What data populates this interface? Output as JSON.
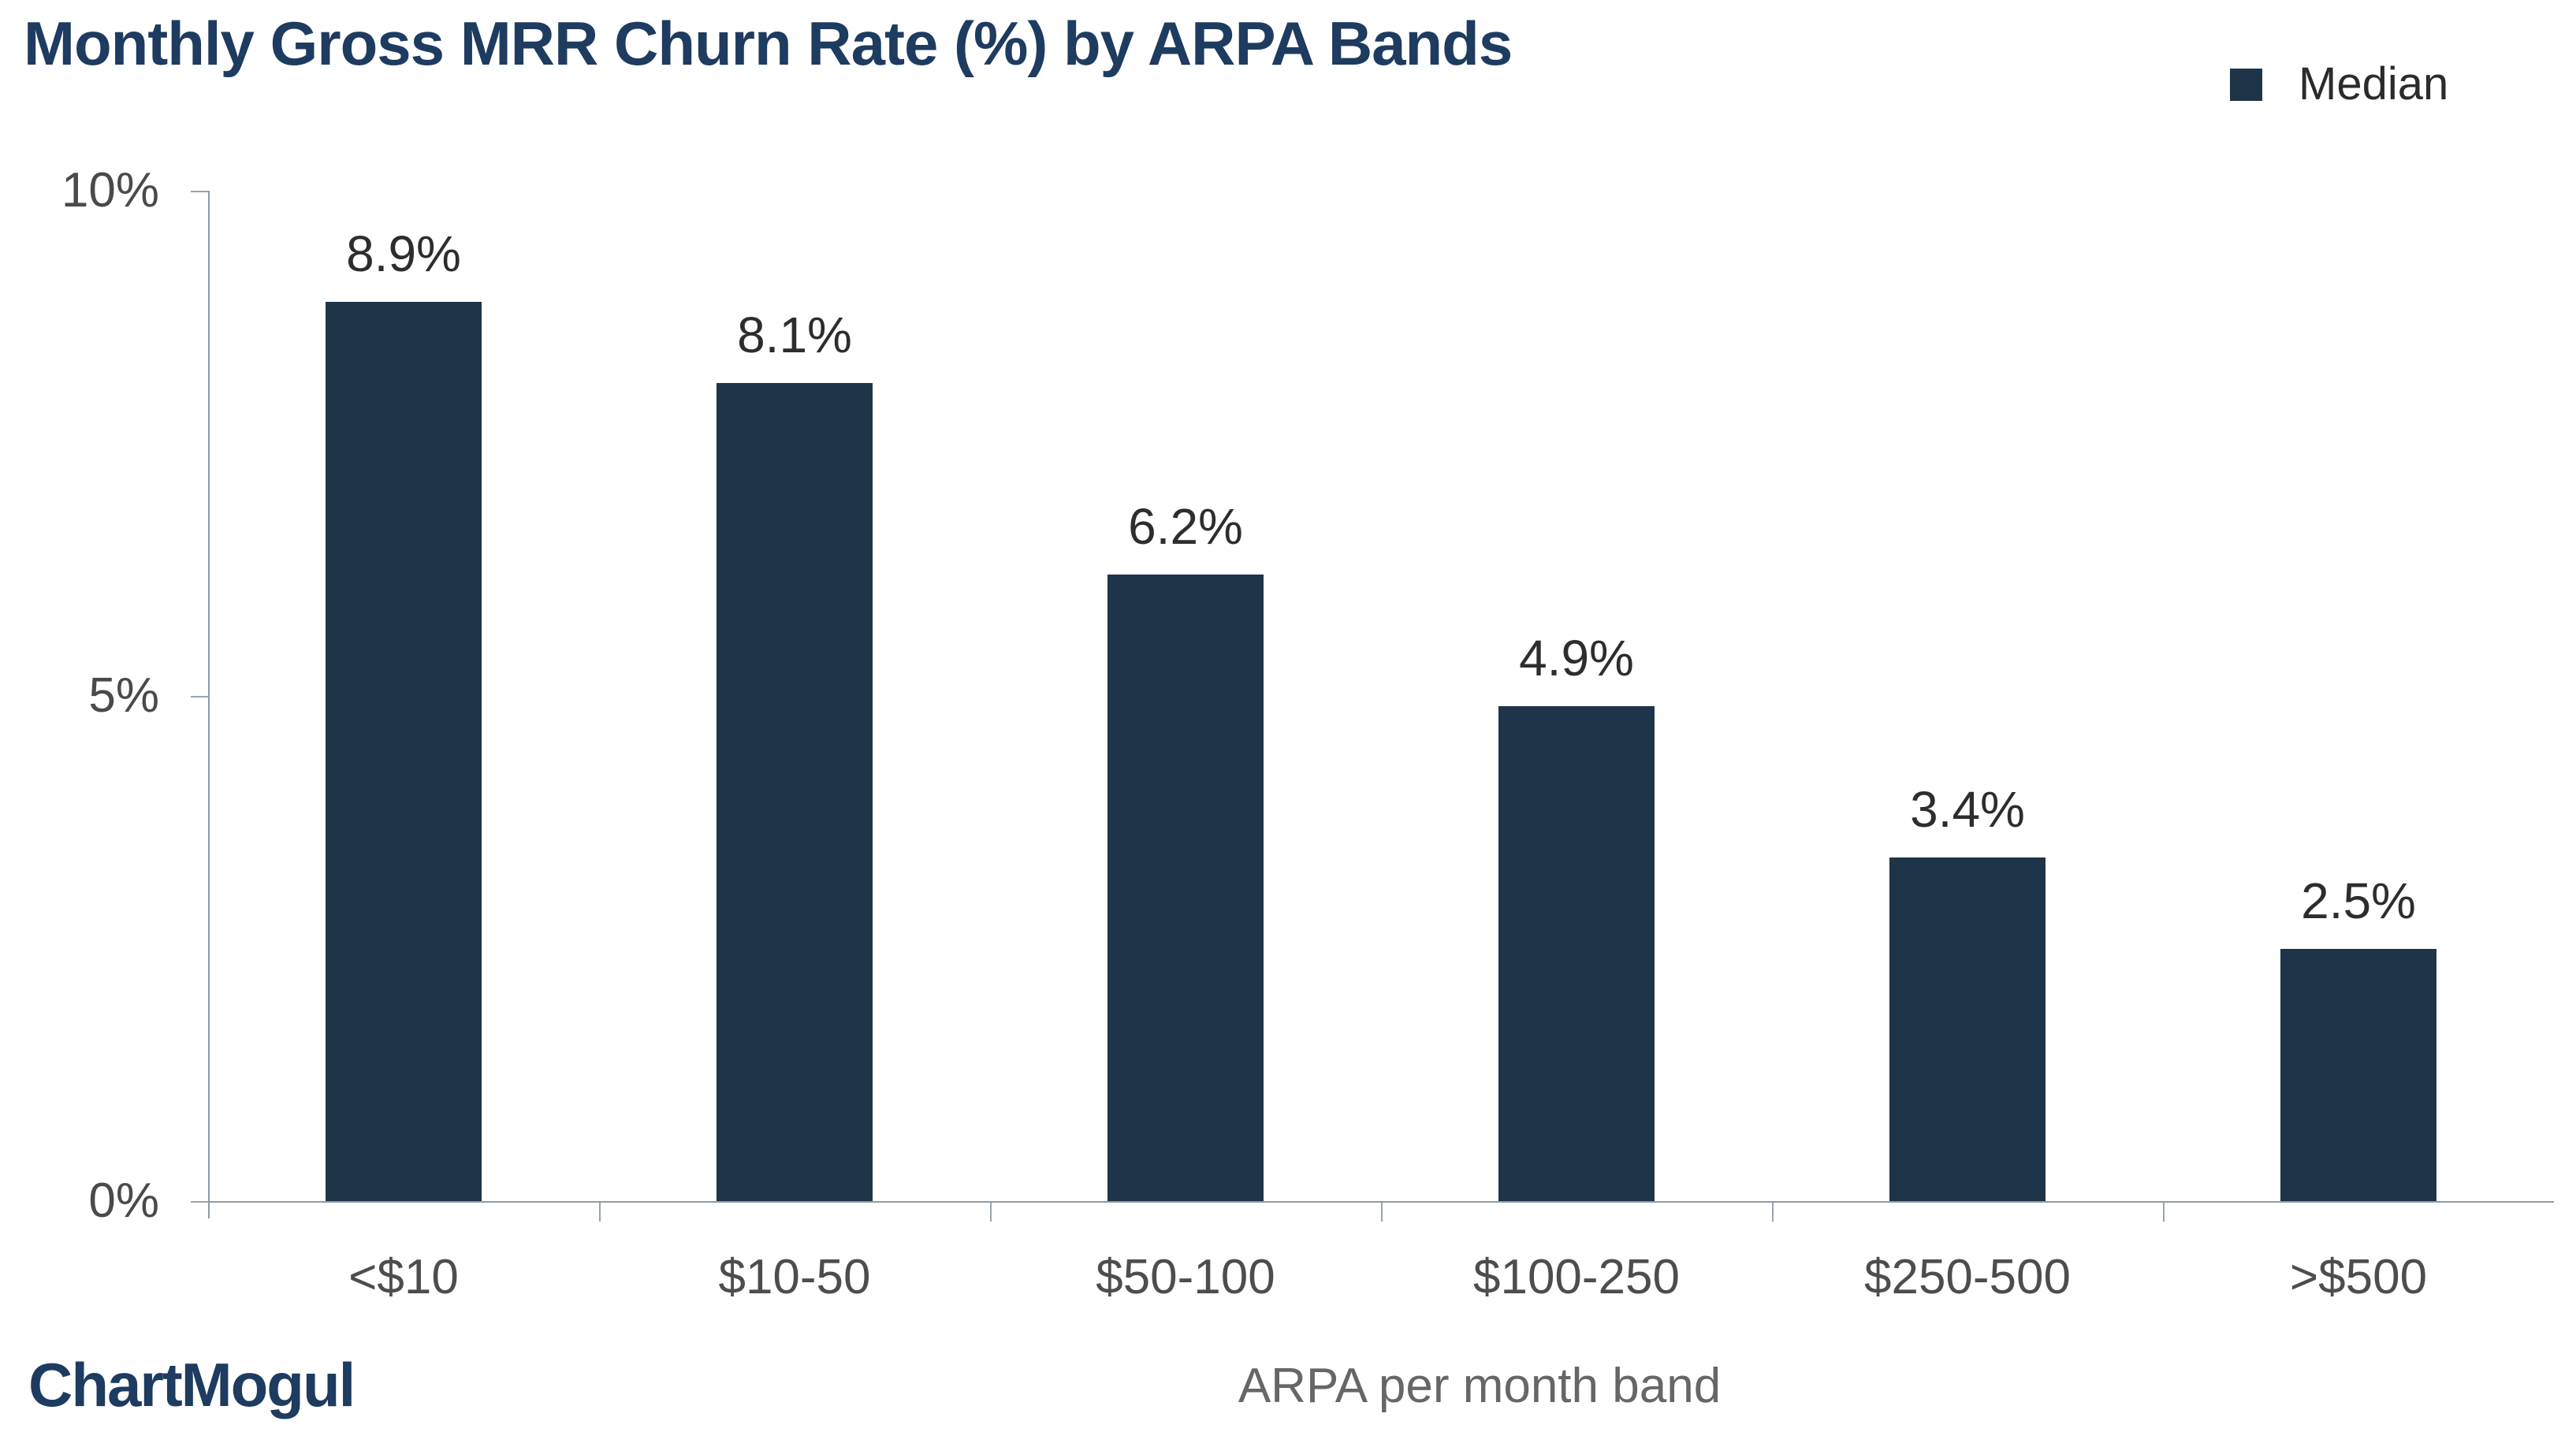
{
  "title": "Monthly Gross MRR Churn Rate (%) by ARPA Bands",
  "legend": {
    "label": "Median"
  },
  "branding": {
    "logo_text": "ChartMogul"
  },
  "colors": {
    "bar": "#1E3448",
    "title": "#1E3B60",
    "logo": "#1E3B60",
    "value_label": "#2D2D2D",
    "tick_label": "#4A4A4A",
    "axis_title": "#666666",
    "axis_line": "#909AA4"
  },
  "chart_data": {
    "type": "bar",
    "title": "Monthly Gross MRR Churn Rate (%) by ARPA Bands",
    "categories": [
      "<$10",
      "$10-50",
      "$50-100",
      "$100-250",
      "$250-500",
      ">$500"
    ],
    "series": [
      {
        "name": "Median",
        "values": [
          8.9,
          8.1,
          6.2,
          4.9,
          3.4,
          2.5
        ]
      }
    ],
    "data_labels": [
      "8.9%",
      "8.1%",
      "6.2%",
      "4.9%",
      "3.4%",
      "2.5%"
    ],
    "xlabel": "ARPA per month band",
    "ylabel": "",
    "ylim": [
      0,
      10
    ],
    "y_ticks": [
      {
        "label": "0%",
        "value": 0
      },
      {
        "label": "5%",
        "value": 5
      },
      {
        "label": "10%",
        "value": 10
      }
    ],
    "grid": false,
    "legend_position": "top-right"
  }
}
